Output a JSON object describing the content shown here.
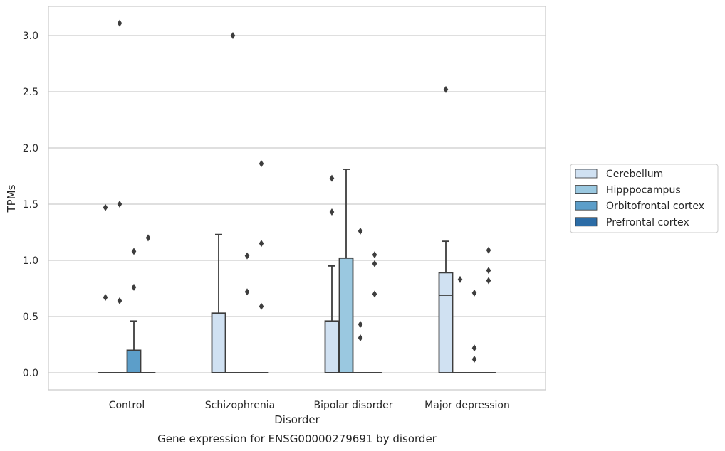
{
  "caption": "Gene expression for ENSG00000279691 by disorder",
  "chart_data": {
    "type": "box",
    "xlabel": "Disorder",
    "ylabel": "TPMs",
    "ylim": [
      -0.15,
      3.25
    ],
    "yticks": [
      "0.0",
      "0.5",
      "1.0",
      "1.5",
      "2.0",
      "2.5",
      "3.0"
    ],
    "grid": "horizontal",
    "legend_position": "right",
    "categories": [
      "Control",
      "Schizophrenia",
      "Bipolar disorder",
      "Major depression"
    ],
    "series": [
      {
        "name": "Cerebellum",
        "color": "#d0e1f2",
        "boxes": [
          {
            "category": "Control",
            "q1": 0,
            "median": 0,
            "q3": 0,
            "whisker_low": 0,
            "whisker_high": 0,
            "outliers": [
              0.67,
              1.47
            ]
          },
          {
            "category": "Schizophrenia",
            "q1": 0,
            "median": 0,
            "q3": 0.53,
            "whisker_low": 0,
            "whisker_high": 1.23,
            "outliers": []
          },
          {
            "category": "Bipolar disorder",
            "q1": 0,
            "median": 0,
            "q3": 0.46,
            "whisker_low": 0,
            "whisker_high": 0.95,
            "outliers": [
              1.43,
              1.73
            ]
          },
          {
            "category": "Major depression",
            "q1": 0,
            "median": 0.69,
            "q3": 0.89,
            "whisker_low": 0,
            "whisker_high": 1.17,
            "outliers": [
              2.52
            ]
          }
        ]
      },
      {
        "name": "Hipppocampus",
        "color": "#9ac8e0",
        "boxes": [
          {
            "category": "Control",
            "q1": 0,
            "median": 0,
            "q3": 0,
            "whisker_low": 0,
            "whisker_high": 0,
            "outliers": [
              0.64,
              1.5,
              3.11
            ]
          },
          {
            "category": "Schizophrenia",
            "q1": 0,
            "median": 0,
            "q3": 0,
            "whisker_low": 0,
            "whisker_high": 0,
            "outliers": [
              3.0
            ]
          },
          {
            "category": "Bipolar disorder",
            "q1": 0,
            "median": 0,
            "q3": 1.02,
            "whisker_low": 0,
            "whisker_high": 1.81,
            "outliers": []
          },
          {
            "category": "Major depression",
            "q1": 0,
            "median": 0,
            "q3": 0,
            "whisker_low": 0,
            "whisker_high": 0,
            "outliers": [
              0.83
            ]
          }
        ]
      },
      {
        "name": "Orbitofrontal cortex",
        "color": "#5c9ec9",
        "boxes": [
          {
            "category": "Control",
            "q1": 0,
            "median": 0,
            "q3": 0.2,
            "whisker_low": 0,
            "whisker_high": 0.46,
            "outliers": [
              0.76,
              1.08
            ]
          },
          {
            "category": "Schizophrenia",
            "q1": 0,
            "median": 0,
            "q3": 0,
            "whisker_low": 0,
            "whisker_high": 0,
            "outliers": [
              0.72,
              1.04
            ]
          },
          {
            "category": "Bipolar disorder",
            "q1": 0,
            "median": 0,
            "q3": 0,
            "whisker_low": 0,
            "whisker_high": 0,
            "outliers": [
              0.31,
              0.43,
              1.26
            ]
          },
          {
            "category": "Major depression",
            "q1": 0,
            "median": 0,
            "q3": 0,
            "whisker_low": 0,
            "whisker_high": 0,
            "outliers": [
              0.12,
              0.22,
              0.71
            ]
          }
        ]
      },
      {
        "name": "Prefrontal cortex",
        "color": "#2c6ca6",
        "boxes": [
          {
            "category": "Control",
            "q1": 0,
            "median": 0,
            "q3": 0,
            "whisker_low": 0,
            "whisker_high": 0,
            "outliers": [
              1.2
            ]
          },
          {
            "category": "Schizophrenia",
            "q1": 0,
            "median": 0,
            "q3": 0,
            "whisker_low": 0,
            "whisker_high": 0,
            "outliers": [
              0.59,
              1.15,
              1.86
            ]
          },
          {
            "category": "Bipolar disorder",
            "q1": 0,
            "median": 0,
            "q3": 0,
            "whisker_low": 0,
            "whisker_high": 0,
            "outliers": [
              0.7,
              0.97,
              1.05
            ]
          },
          {
            "category": "Major depression",
            "q1": 0,
            "median": 0,
            "q3": 0,
            "whisker_low": 0,
            "whisker_high": 0,
            "outliers": [
              0.82,
              0.91,
              1.09
            ]
          }
        ]
      }
    ]
  }
}
